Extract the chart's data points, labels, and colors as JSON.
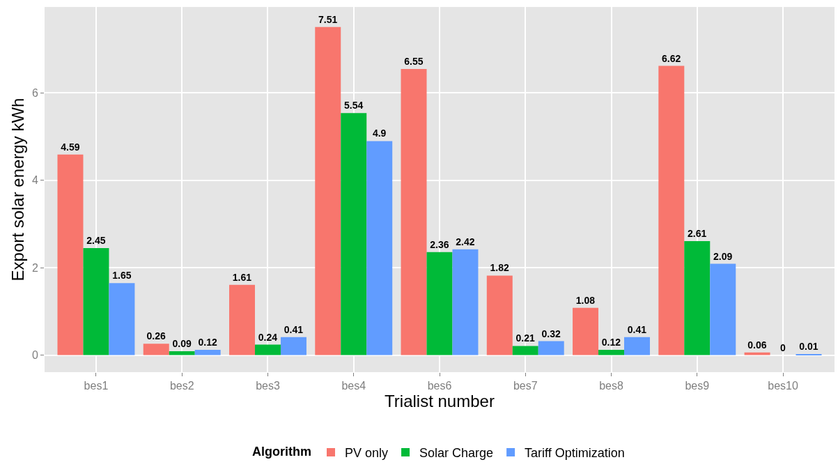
{
  "chart_data": {
    "type": "bar",
    "xlabel": "Trialist number",
    "ylabel": "Export solar energy kWh",
    "legend_title": "Algorithm",
    "categories": [
      "bes1",
      "bes2",
      "bes3",
      "bes4",
      "bes6",
      "bes7",
      "bes8",
      "bes9",
      "bes10"
    ],
    "series": [
      {
        "name": "PV only",
        "color": "#f8766d",
        "values": [
          4.59,
          0.26,
          1.61,
          7.51,
          6.55,
          1.82,
          1.08,
          6.62,
          0.06
        ]
      },
      {
        "name": "Solar Charge",
        "color": "#00ba38",
        "values": [
          2.45,
          0.09,
          0.24,
          5.54,
          2.36,
          0.21,
          0.12,
          2.61,
          0
        ]
      },
      {
        "name": "Tariff Optimization",
        "color": "#619cff",
        "values": [
          1.65,
          0.12,
          0.41,
          4.9,
          2.42,
          0.32,
          0.41,
          2.09,
          0.01
        ]
      }
    ],
    "ylim": [
      -0.39,
      7.97
    ],
    "yticks": [
      0,
      2,
      4,
      6
    ],
    "grid": true,
    "legend": "bottom",
    "data_labels": true
  }
}
